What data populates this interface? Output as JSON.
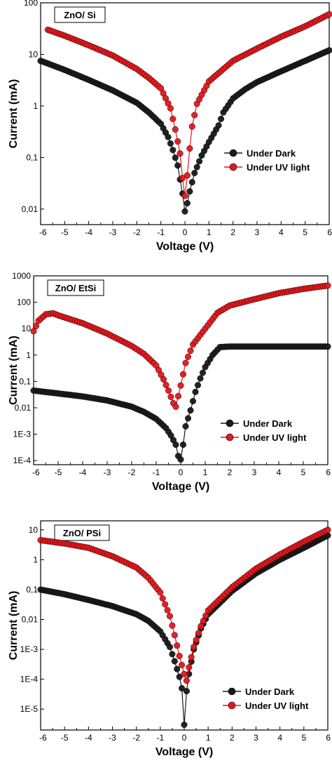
{
  "colors": {
    "dark": "#1a1a1a",
    "uv": "#e8171c"
  },
  "chart_data": [
    {
      "type": "scatter",
      "title": "ZnO/ Si",
      "xlabel": "Voltage (V)",
      "ylabel": "Current (mA)",
      "xlim": [
        -6,
        6
      ],
      "ylim": [
        0.005,
        100
      ],
      "yscale": "log",
      "grid": false,
      "legend_position": "right",
      "x_ticks": [
        "-6",
        "-5",
        "-4",
        "-3",
        "-2",
        "-1",
        "0",
        "1",
        "2",
        "3",
        "4",
        "5",
        "6"
      ],
      "y_ticks": [
        {
          "v": 0.01,
          "label": "0,01"
        },
        {
          "v": 0.1,
          "label": "0,1"
        },
        {
          "v": 1,
          "label": "1"
        },
        {
          "v": 10,
          "label": "10"
        },
        {
          "v": 100,
          "label": "100"
        }
      ],
      "series": [
        {
          "name": "Under Dark",
          "color_key": "dark",
          "points": [
            [
              -6,
              7.5
            ],
            [
              -5,
              5
            ],
            [
              -4,
              3.2
            ],
            [
              -3,
              2
            ],
            [
              -2,
              1.15
            ],
            [
              -1.5,
              0.75
            ],
            [
              -1,
              0.45
            ],
            [
              -0.7,
              0.25
            ],
            [
              -0.5,
              0.14
            ],
            [
              -0.3,
              0.07
            ],
            [
              -0.1,
              0.02
            ],
            [
              0,
              0.009
            ],
            [
              0.1,
              0.013
            ],
            [
              0.2,
              0.022
            ],
            [
              0.4,
              0.05
            ],
            [
              0.7,
              0.11
            ],
            [
              1,
              0.2
            ],
            [
              1.4,
              0.42
            ],
            [
              1.6,
              0.75
            ],
            [
              2,
              1.4
            ],
            [
              2.5,
              2.1
            ],
            [
              3,
              2.9
            ],
            [
              4,
              4.7
            ],
            [
              5,
              7.5
            ],
            [
              6,
              12
            ]
          ]
        },
        {
          "name": "Under UV light",
          "color_key": "uv",
          "points": [
            [
              -5.7,
              30
            ],
            [
              -5,
              23
            ],
            [
              -4,
              15
            ],
            [
              -3,
              9.5
            ],
            [
              -2,
              5.2
            ],
            [
              -1.5,
              3.5
            ],
            [
              -1,
              2.2
            ],
            [
              -0.6,
              0.9
            ],
            [
              -0.4,
              0.35
            ],
            [
              -0.2,
              0.12
            ],
            [
              -0.1,
              0.04
            ],
            [
              0,
              0.018
            ],
            [
              0.1,
              0.045
            ],
            [
              0.2,
              0.15
            ],
            [
              0.3,
              0.4
            ],
            [
              0.5,
              1.1
            ],
            [
              1,
              3
            ],
            [
              2,
              7.5
            ],
            [
              3,
              13
            ],
            [
              4,
              22
            ],
            [
              5,
              35
            ],
            [
              6,
              60
            ]
          ]
        }
      ]
    },
    {
      "type": "scatter",
      "title": "ZnO/ EtSi",
      "xlabel": "Voltage (V)",
      "ylabel": "Current (mA)",
      "xlim": [
        -6,
        6
      ],
      "ylim": [
        7e-05,
        1000
      ],
      "yscale": "log",
      "grid": false,
      "legend_position": "bottom-right",
      "x_ticks": [
        "-6",
        "-5",
        "-4",
        "-3",
        "-2",
        "-1",
        "0",
        "1",
        "2",
        "3",
        "4",
        "5",
        "6"
      ],
      "y_ticks": [
        {
          "v": 0.0001,
          "label": "1E-4"
        },
        {
          "v": 0.001,
          "label": "1E-3"
        },
        {
          "v": 0.01,
          "label": "0,01"
        },
        {
          "v": 0.1,
          "label": "0,1"
        },
        {
          "v": 1,
          "label": "1"
        },
        {
          "v": 10,
          "label": "10"
        },
        {
          "v": 100,
          "label": "100"
        },
        {
          "v": 1000,
          "label": "1000"
        }
      ],
      "series": [
        {
          "name": "Under Dark",
          "color_key": "dark",
          "points": [
            [
              -6,
              0.045
            ],
            [
              -5,
              0.035
            ],
            [
              -4,
              0.027
            ],
            [
              -3,
              0.019
            ],
            [
              -2,
              0.011
            ],
            [
              -1.5,
              0.007
            ],
            [
              -1,
              0.0038
            ],
            [
              -0.6,
              0.0017
            ],
            [
              -0.4,
              0.0009
            ],
            [
              -0.2,
              0.0004
            ],
            [
              -0.1,
              0.00015
            ],
            [
              0,
              0.00011
            ],
            [
              0.1,
              0.0004
            ],
            [
              0.2,
              0.002
            ],
            [
              0.4,
              0.008
            ],
            [
              0.6,
              0.04
            ],
            [
              0.8,
              0.13
            ],
            [
              1,
              0.35
            ],
            [
              1.3,
              1
            ],
            [
              1.6,
              2
            ],
            [
              2,
              2.1
            ],
            [
              3,
              2.1
            ],
            [
              4,
              2.1
            ],
            [
              5,
              2.1
            ],
            [
              6,
              2.1
            ]
          ]
        },
        {
          "name": "Under UV light",
          "color_key": "uv",
          "points": [
            [
              -6,
              8
            ],
            [
              -5.8,
              20
            ],
            [
              -5.5,
              35
            ],
            [
              -5.2,
              38
            ],
            [
              -5,
              32
            ],
            [
              -4,
              16
            ],
            [
              -3,
              6.5
            ],
            [
              -2,
              2.2
            ],
            [
              -1.5,
              1.1
            ],
            [
              -1,
              0.4
            ],
            [
              -0.7,
              0.12
            ],
            [
              -0.5,
              0.045
            ],
            [
              -0.3,
              0.015
            ],
            [
              -0.2,
              0.011
            ],
            [
              0,
              0.07
            ],
            [
              0.2,
              0.5
            ],
            [
              0.5,
              2.5
            ],
            [
              1,
              10
            ],
            [
              1.5,
              40
            ],
            [
              2,
              75
            ],
            [
              3,
              130
            ],
            [
              4,
              220
            ],
            [
              5,
              320
            ],
            [
              6,
              430
            ]
          ]
        }
      ]
    },
    {
      "type": "scatter",
      "title": "ZnO/ PSi",
      "xlabel": "Voltage (V)",
      "ylabel": "Current (mA)",
      "xlim": [
        -6,
        6
      ],
      "ylim": [
        2e-06,
        20
      ],
      "yscale": "log",
      "grid": false,
      "legend_position": "bottom-right",
      "x_ticks": [
        "-6",
        "-5",
        "-4",
        "-3",
        "-2",
        "-1",
        "0",
        "1",
        "2",
        "3",
        "4",
        "5",
        "6"
      ],
      "y_ticks": [
        {
          "v": 1e-05,
          "label": "1E-5"
        },
        {
          "v": 0.0001,
          "label": "1E-4"
        },
        {
          "v": 0.001,
          "label": "1E-3"
        },
        {
          "v": 0.01,
          "label": "0,01"
        },
        {
          "v": 0.1,
          "label": "0,1"
        },
        {
          "v": 1,
          "label": "1"
        },
        {
          "v": 10,
          "label": "10"
        }
      ],
      "series": [
        {
          "name": "Under Dark",
          "color_key": "dark",
          "points": [
            [
              -6,
              0.1
            ],
            [
              -5,
              0.07
            ],
            [
              -4,
              0.045
            ],
            [
              -3,
              0.028
            ],
            [
              -2,
              0.015
            ],
            [
              -1.5,
              0.009
            ],
            [
              -1,
              0.004
            ],
            [
              -0.6,
              0.0012
            ],
            [
              -0.4,
              0.0004
            ],
            [
              -0.2,
              0.00012
            ],
            [
              -0.1,
              5e-05
            ],
            [
              0,
              3e-06
            ],
            [
              0.1,
              4e-05
            ],
            [
              0.2,
              0.00015
            ],
            [
              0.4,
              0.001
            ],
            [
              0.7,
              0.005
            ],
            [
              1,
              0.015
            ],
            [
              2,
              0.09
            ],
            [
              3,
              0.35
            ],
            [
              4,
              1
            ],
            [
              5,
              2.5
            ],
            [
              6,
              6.5
            ]
          ]
        },
        {
          "name": "Under UV light",
          "color_key": "uv",
          "points": [
            [
              -6,
              4.5
            ],
            [
              -5,
              3.5
            ],
            [
              -4,
              2.5
            ],
            [
              -3,
              1.3
            ],
            [
              -2,
              0.55
            ],
            [
              -1.5,
              0.25
            ],
            [
              -1,
              0.08
            ],
            [
              -0.6,
              0.013
            ],
            [
              -0.4,
              0.003
            ],
            [
              -0.2,
              0.0006
            ],
            [
              0,
              0.00015
            ],
            [
              0.1,
              9e-05
            ],
            [
              0.2,
              0.00025
            ],
            [
              0.4,
              0.0012
            ],
            [
              0.7,
              0.006
            ],
            [
              1,
              0.02
            ],
            [
              2,
              0.12
            ],
            [
              3,
              0.5
            ],
            [
              4,
              1.5
            ],
            [
              5,
              4
            ],
            [
              6,
              10
            ]
          ]
        }
      ]
    }
  ]
}
